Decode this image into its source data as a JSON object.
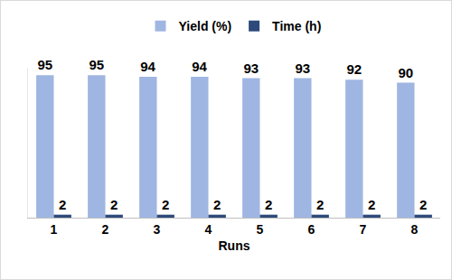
{
  "chart_data": {
    "type": "bar",
    "x_label": "Runs",
    "categories": [
      "1",
      "2",
      "3",
      "4",
      "5",
      "6",
      "7",
      "8"
    ],
    "series": [
      {
        "name": "Yield (%)",
        "color": "#9fb6e2",
        "values": [
          95,
          95,
          94,
          94,
          93,
          93,
          92,
          90
        ]
      },
      {
        "name": "Time (h)",
        "color": "#2e4a7b",
        "values": [
          2,
          2,
          2,
          2,
          2,
          2,
          2,
          2
        ]
      }
    ],
    "ylim": [
      0,
      100
    ],
    "grid": false,
    "legend": "top",
    "data_labels": true,
    "tick_labels": "x"
  }
}
